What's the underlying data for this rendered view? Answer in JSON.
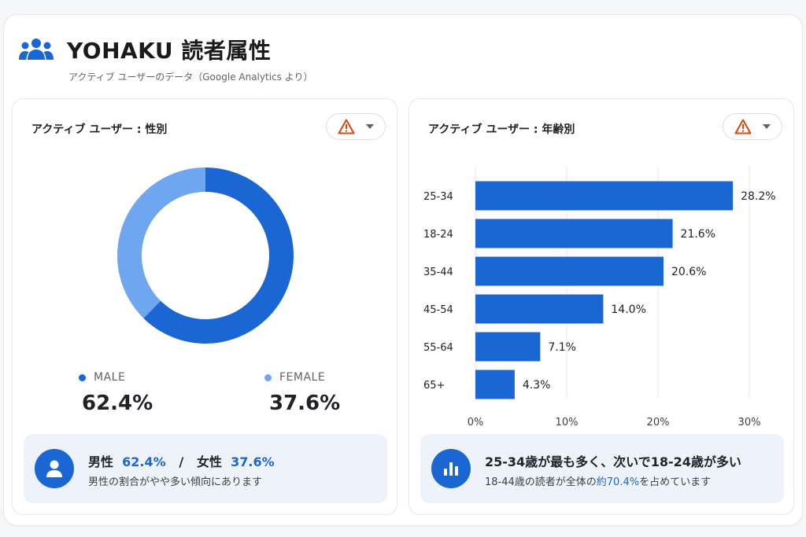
{
  "header": {
    "title": "YOHAKU 読者属性",
    "subtitle": "アクティブ ユーザーのデータ（Google Analytics より）",
    "icon": "people-icon"
  },
  "colors": {
    "male": "#1a66d2",
    "female": "#6ea6f0",
    "bar": "#1a66d2",
    "warning": "#d9480f",
    "summary_bg": "#eef3fb"
  },
  "gender_card": {
    "title": "アクティブ ユーザー : 性別",
    "legend": [
      {
        "label": "MALE",
        "value": "62.4%"
      },
      {
        "label": "FEMALE",
        "value": "37.6%"
      }
    ],
    "summary": {
      "male_label": "男性",
      "male_value": "62.4%",
      "separator": "/",
      "female_label": "女性",
      "female_value": "37.6%",
      "note": "男性の割合がやや多い傾向にあります"
    }
  },
  "age_card": {
    "title": "アクティブ ユーザー : 年齢別",
    "summary": {
      "headline": "25-34歳が最も多く、次いで18-24歳が多い",
      "note_prefix": "18-44歳の読者が全体の",
      "note_highlight": "約70.4%",
      "note_suffix": "を占めています"
    }
  },
  "chart_data": [
    {
      "type": "pie",
      "variant": "donut",
      "categories": [
        "MALE",
        "FEMALE"
      ],
      "values": [
        62.4,
        37.6
      ],
      "unit": "%"
    },
    {
      "type": "bar",
      "orientation": "horizontal",
      "categories": [
        "25-34",
        "18-24",
        "35-44",
        "45-54",
        "55-64",
        "65+"
      ],
      "values": [
        28.2,
        21.6,
        20.6,
        14.0,
        7.1,
        4.3
      ],
      "value_labels": [
        "28.2%",
        "21.6%",
        "20.6%",
        "14.0%",
        "7.1%",
        "4.3%"
      ],
      "xlim": [
        0,
        30
      ],
      "xticks": [
        0,
        10,
        20,
        30
      ],
      "xtick_labels": [
        "0%",
        "10%",
        "20%",
        "30%"
      ],
      "grid": true
    }
  ]
}
